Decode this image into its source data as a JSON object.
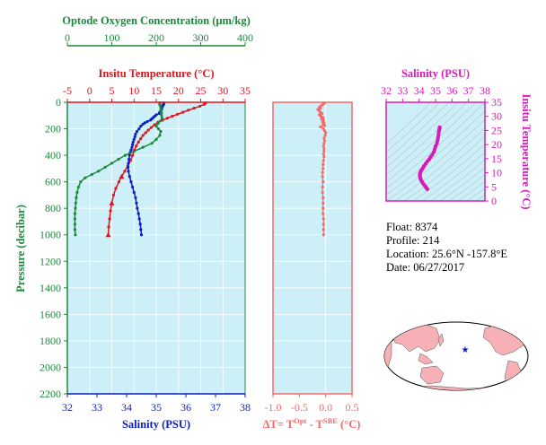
{
  "colors": {
    "oxygen": "#1a8a3a",
    "temperature": "#e0141e",
    "salinity": "#0a1fbf",
    "delta_t": "#f36a6a",
    "ts": "#d91ab8",
    "panel_bg": "#cdf0f8"
  },
  "info": {
    "float": "Float:  8374",
    "profile": "Profile:  214",
    "location": "Location:  25.6°N  -157.8°E",
    "date": "Date:  06/27/2017"
  },
  "map": {
    "marker_icon": "star-icon"
  },
  "chart_data": [
    {
      "type": "line",
      "name": "main-profile",
      "axes": {
        "oxygen": {
          "title": "Optode Oxygen Concentration (μm/kg)",
          "ticks": [
            0,
            100,
            200,
            300,
            400
          ],
          "range": [
            0,
            400
          ]
        },
        "temperature": {
          "title": "Insitu Temperature (°C)",
          "ticks": [
            -5,
            0,
            5,
            10,
            15,
            20,
            25,
            30,
            35
          ],
          "range": [
            -5,
            35
          ]
        },
        "salinity": {
          "title": "Salinity (PSU)",
          "ticks": [
            32,
            33,
            34,
            35,
            36,
            37,
            38
          ],
          "range": [
            32,
            38
          ]
        },
        "pressure": {
          "title": "Pressure (decibar)",
          "ticks": [
            0,
            200,
            400,
            600,
            800,
            1000,
            1200,
            1400,
            1600,
            1800,
            2000,
            2200
          ],
          "range": [
            0,
            2200
          ],
          "inverted": true
        }
      },
      "grid": true,
      "series": [
        {
          "key": "temperature",
          "points": [
            [
              26.1,
              5
            ],
            [
              25.8,
              15
            ],
            [
              24.8,
              30
            ],
            [
              23.5,
              45
            ],
            [
              22.2,
              60
            ],
            [
              21.0,
              75
            ],
            [
              19.8,
              90
            ],
            [
              18.6,
              105
            ],
            [
              17.5,
              120
            ],
            [
              16.4,
              135
            ],
            [
              15.4,
              150
            ],
            [
              14.6,
              170
            ],
            [
              13.9,
              190
            ],
            [
              13.2,
              210
            ],
            [
              12.6,
              230
            ],
            [
              12.0,
              250
            ],
            [
              11.5,
              275
            ],
            [
              11.0,
              300
            ],
            [
              10.5,
              330
            ],
            [
              10.1,
              360
            ],
            [
              9.7,
              400
            ],
            [
              9.2,
              440
            ],
            [
              8.6,
              480
            ],
            [
              7.9,
              520
            ],
            [
              7.2,
              560
            ],
            [
              6.6,
              600
            ],
            [
              5.9,
              650
            ],
            [
              5.4,
              700
            ],
            [
              5.0,
              760
            ],
            [
              4.7,
              820
            ],
            [
              4.5,
              880
            ],
            [
              4.3,
              940
            ],
            [
              4.2,
              1000
            ]
          ]
        },
        {
          "key": "salinity",
          "points": [
            [
              35.25,
              5
            ],
            [
              35.25,
              15
            ],
            [
              35.22,
              25
            ],
            [
              35.2,
              35
            ],
            [
              35.18,
              45
            ],
            [
              35.18,
              55
            ],
            [
              35.15,
              65
            ],
            [
              35.12,
              75
            ],
            [
              35.1,
              85
            ],
            [
              35.0,
              95
            ],
            [
              34.95,
              105
            ],
            [
              34.9,
              115
            ],
            [
              34.85,
              125
            ],
            [
              34.8,
              135
            ],
            [
              34.7,
              145
            ],
            [
              34.62,
              155
            ],
            [
              34.55,
              165
            ],
            [
              34.48,
              180
            ],
            [
              34.42,
              200
            ],
            [
              34.35,
              220
            ],
            [
              34.3,
              240
            ],
            [
              34.28,
              260
            ],
            [
              34.25,
              280
            ],
            [
              34.22,
              300
            ],
            [
              34.2,
              320
            ],
            [
              34.18,
              340
            ],
            [
              34.15,
              360
            ],
            [
              34.12,
              380
            ],
            [
              34.1,
              400
            ],
            [
              34.08,
              430
            ],
            [
              34.06,
              460
            ],
            [
              34.05,
              490
            ],
            [
              34.06,
              520
            ],
            [
              34.1,
              560
            ],
            [
              34.15,
              600
            ],
            [
              34.2,
              640
            ],
            [
              34.25,
              680
            ],
            [
              34.3,
              720
            ],
            [
              34.33,
              760
            ],
            [
              34.36,
              800
            ],
            [
              34.4,
              840
            ],
            [
              34.43,
              880
            ],
            [
              34.46,
              920
            ],
            [
              34.48,
              960
            ],
            [
              34.5,
              1000
            ]
          ]
        },
        {
          "key": "oxygen",
          "points": [
            [
              208,
              5
            ],
            [
              208,
              20
            ],
            [
              210,
              40
            ],
            [
              210,
              60
            ],
            [
              212,
              80
            ],
            [
              212,
              100
            ],
            [
              213,
              120
            ],
            [
              210,
              140
            ],
            [
              204,
              160
            ],
            [
              200,
              180
            ],
            [
              205,
              200
            ],
            [
              210,
              220
            ],
            [
              208,
              250
            ],
            [
              200,
              280
            ],
            [
              190,
              310
            ],
            [
              170,
              340
            ],
            [
              150,
              370
            ],
            [
              130,
              400
            ],
            [
              115,
              430
            ],
            [
              100,
              460
            ],
            [
              85,
              490
            ],
            [
              70,
              520
            ],
            [
              55,
              545
            ],
            [
              40,
              570
            ],
            [
              30,
              600
            ],
            [
              25,
              640
            ],
            [
              22,
              680
            ],
            [
              20,
              720
            ],
            [
              19,
              760
            ],
            [
              18,
              800
            ],
            [
              17,
              840
            ],
            [
              17,
              880
            ],
            [
              17,
              920
            ],
            [
              17,
              960
            ],
            [
              18,
              1000
            ]
          ]
        }
      ]
    },
    {
      "type": "scatter",
      "name": "delta-t",
      "xlabel": "ΔT= T^Opt - T^SBE (°C)",
      "xlabel_parts": {
        "delta": "ΔT= T",
        "opt": "Opt",
        "minus": " - T",
        "sbe": "SBE",
        "unit": " (°C)"
      },
      "xticks": [
        "-1.0",
        "-0.5",
        "0.0",
        "0.5"
      ],
      "xlim": [
        -1.0,
        0.5
      ],
      "ylim": [
        0,
        2200
      ],
      "points": [
        [
          -0.02,
          5
        ],
        [
          -0.05,
          15
        ],
        [
          -0.08,
          25
        ],
        [
          -0.12,
          35
        ],
        [
          -0.1,
          45
        ],
        [
          -0.15,
          55
        ],
        [
          -0.12,
          65
        ],
        [
          -0.1,
          75
        ],
        [
          -0.07,
          85
        ],
        [
          -0.12,
          95
        ],
        [
          -0.09,
          105
        ],
        [
          -0.05,
          115
        ],
        [
          -0.08,
          125
        ],
        [
          -0.04,
          135
        ],
        [
          -0.06,
          145
        ],
        [
          -0.03,
          155
        ],
        [
          -0.05,
          165
        ],
        [
          -0.02,
          175
        ],
        [
          -0.1,
          185
        ],
        [
          -0.04,
          200
        ],
        [
          -0.02,
          215
        ],
        [
          0.0,
          230
        ],
        [
          -0.01,
          250
        ],
        [
          -0.03,
          270
        ],
        [
          -0.02,
          290
        ],
        [
          -0.03,
          310
        ],
        [
          -0.04,
          330
        ],
        [
          -0.03,
          350
        ],
        [
          -0.03,
          370
        ],
        [
          -0.04,
          390
        ],
        [
          -0.03,
          410
        ],
        [
          -0.04,
          440
        ],
        [
          -0.05,
          470
        ],
        [
          -0.05,
          500
        ],
        [
          -0.06,
          530
        ],
        [
          -0.06,
          560
        ],
        [
          -0.05,
          600
        ],
        [
          -0.06,
          640
        ],
        [
          -0.06,
          680
        ],
        [
          -0.05,
          720
        ],
        [
          -0.05,
          760
        ],
        [
          -0.05,
          800
        ],
        [
          -0.05,
          840
        ],
        [
          -0.04,
          880
        ],
        [
          -0.04,
          920
        ],
        [
          -0.04,
          960
        ],
        [
          -0.04,
          1000
        ]
      ]
    },
    {
      "type": "scatter",
      "name": "t-s-diagram",
      "xlabel": "Salinity (PSU)",
      "ylabel": "Insitu Temperature (°C)",
      "xticks": [
        32,
        33,
        34,
        35,
        36,
        37,
        38
      ],
      "yticks": [
        0,
        5,
        10,
        15,
        20,
        25,
        30,
        35
      ],
      "xlim": [
        32,
        38
      ],
      "ylim": [
        0,
        35
      ],
      "points": [
        [
          34.5,
          4.2
        ],
        [
          34.45,
          4.6
        ],
        [
          34.4,
          5.0
        ],
        [
          34.33,
          5.5
        ],
        [
          34.25,
          6.2
        ],
        [
          34.18,
          6.8
        ],
        [
          34.12,
          7.4
        ],
        [
          34.08,
          8.0
        ],
        [
          34.06,
          8.6
        ],
        [
          34.05,
          9.2
        ],
        [
          34.06,
          9.8
        ],
        [
          34.1,
          10.4
        ],
        [
          34.15,
          11.0
        ],
        [
          34.22,
          11.6
        ],
        [
          34.3,
          12.4
        ],
        [
          34.4,
          13.2
        ],
        [
          34.5,
          14.0
        ],
        [
          34.62,
          14.8
        ],
        [
          34.7,
          15.6
        ],
        [
          34.8,
          16.4
        ],
        [
          34.9,
          17.4
        ],
        [
          34.95,
          18.4
        ],
        [
          35.0,
          19.4
        ],
        [
          35.08,
          20.4
        ],
        [
          35.12,
          21.4
        ],
        [
          35.15,
          22.4
        ],
        [
          35.18,
          23.4
        ],
        [
          35.2,
          24.4
        ],
        [
          35.22,
          25.2
        ],
        [
          35.25,
          25.8
        ],
        [
          35.25,
          26.1
        ]
      ]
    }
  ]
}
